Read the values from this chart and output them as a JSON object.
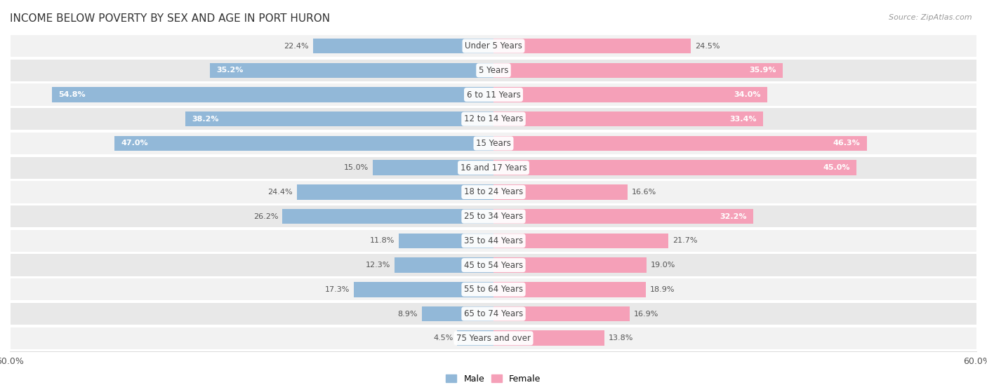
{
  "title": "INCOME BELOW POVERTY BY SEX AND AGE IN PORT HURON",
  "source": "Source: ZipAtlas.com",
  "categories": [
    "Under 5 Years",
    "5 Years",
    "6 to 11 Years",
    "12 to 14 Years",
    "15 Years",
    "16 and 17 Years",
    "18 to 24 Years",
    "25 to 34 Years",
    "35 to 44 Years",
    "45 to 54 Years",
    "55 to 64 Years",
    "65 to 74 Years",
    "75 Years and over"
  ],
  "male_values": [
    22.4,
    35.2,
    54.8,
    38.2,
    47.0,
    15.0,
    24.4,
    26.2,
    11.8,
    12.3,
    17.3,
    8.9,
    4.5
  ],
  "female_values": [
    24.5,
    35.9,
    34.0,
    33.4,
    46.3,
    45.0,
    16.6,
    32.2,
    21.7,
    19.0,
    18.9,
    16.9,
    13.8
  ],
  "male_color": "#92b8d8",
  "female_color": "#f5a0b8",
  "male_label": "Male",
  "female_label": "Female",
  "axis_max": 60.0,
  "row_colors": [
    "#f2f2f2",
    "#e8e8e8"
  ],
  "title_fontsize": 11,
  "source_fontsize": 8,
  "cat_fontsize": 8.5,
  "value_fontsize": 8,
  "legend_fontsize": 9,
  "value_inside_threshold_male": 30,
  "value_inside_threshold_female": 30
}
